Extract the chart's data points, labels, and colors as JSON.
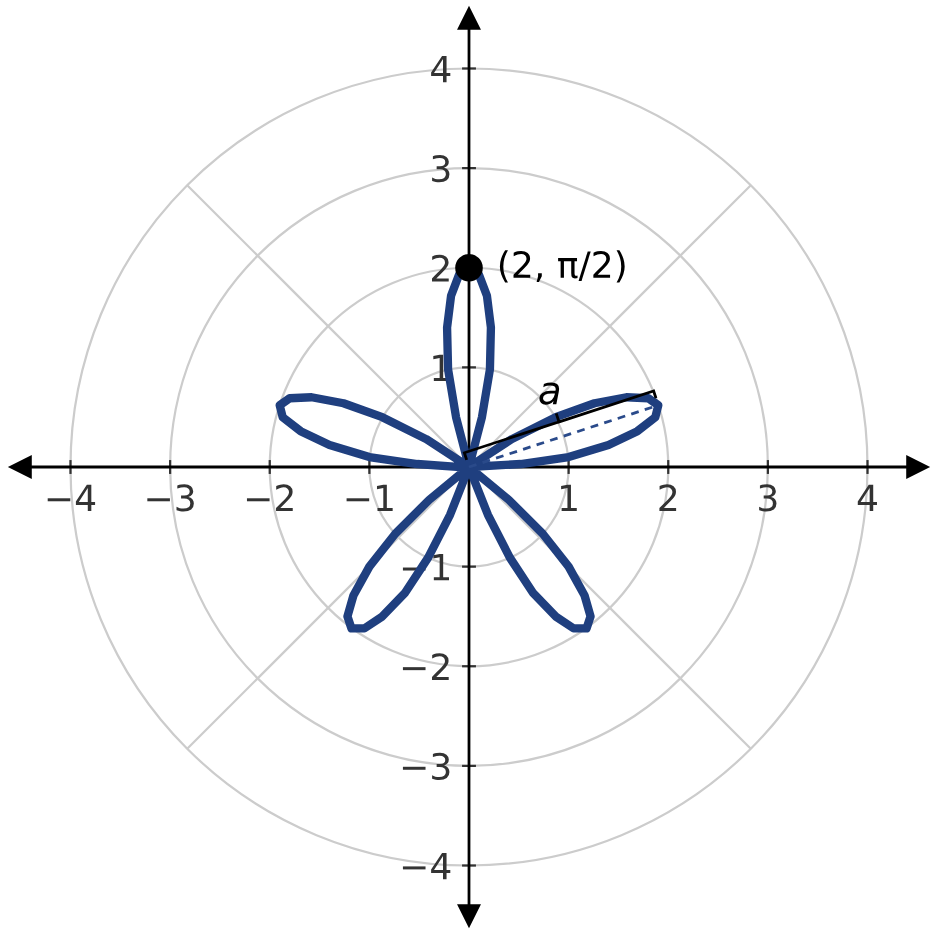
{
  "chart_data": {
    "type": "line",
    "xlim": [
      -4.5,
      4.5
    ],
    "ylim": [
      -4.5,
      4.5
    ],
    "xticks": [
      {
        "value": -4,
        "label": "−4"
      },
      {
        "value": -3,
        "label": "−3"
      },
      {
        "value": -2,
        "label": "−2"
      },
      {
        "value": -1,
        "label": "−1"
      },
      1,
      2,
      3,
      4
    ],
    "yticks": [
      {
        "value": -4,
        "label": "−4"
      },
      {
        "value": -3,
        "label": "−3"
      },
      {
        "value": -2,
        "label": "−2"
      },
      {
        "value": -1,
        "label": "−1"
      },
      1,
      2,
      3,
      4
    ],
    "series": [
      {
        "color": "#1f3f7f",
        "line_style": "solid",
        "x": [
          0,
          0.52,
          1.0,
          1.4,
          1.69,
          1.87,
          1.9,
          1.8,
          1.58,
          1.26,
          0.87,
          0.43,
          0,
          -0.4,
          -0.74,
          -1.0,
          -1.16,
          -1.22,
          -1.18,
          -1.05,
          -0.87,
          -0.64,
          -0.41,
          -0.19,
          0,
          0.13,
          0.21,
          0.22,
          0.18,
          0.1,
          0,
          -0.1,
          -0.18,
          -0.22,
          -0.21,
          -0.13,
          0,
          0.19,
          0.41,
          0.64,
          0.87,
          1.05,
          1.18,
          1.22,
          1.16,
          1.0,
          0.74,
          0.4,
          0,
          -0.43,
          -0.87,
          -1.26,
          -1.58,
          -1.8,
          -1.9,
          -1.87,
          -1.69,
          -1.4,
          -1.0,
          -0.52,
          -0.09
        ],
        "values": [
          0,
          0.03,
          0.1,
          0.22,
          0.36,
          0.5,
          0.62,
          0.69,
          0.7,
          0.64,
          0.5,
          0.28,
          0,
          -0.33,
          -0.67,
          -1.0,
          -1.29,
          -1.5,
          -1.62,
          -1.62,
          -1.5,
          -1.26,
          -0.91,
          -0.48,
          0,
          0.5,
          0.98,
          1.4,
          1.72,
          1.93,
          2.0,
          1.93,
          1.72,
          1.4,
          0.98,
          0.5,
          0,
          -0.48,
          -0.91,
          -1.26,
          -1.5,
          -1.62,
          -1.62,
          -1.5,
          -1.29,
          -1.0,
          -0.67,
          -0.33,
          0,
          0.28,
          0.5,
          0.64,
          0.7,
          0.69,
          0.62,
          0.5,
          0.36,
          0.22,
          0.1,
          0.03,
          0.0
        ]
      },
      {
        "type": "scatter",
        "color": "#000000",
        "marker": "circle",
        "x": [
          0
        ],
        "values": [
          2
        ]
      }
    ],
    "annotations": [
      {
        "text": "(2, π/2)",
        "x": 0,
        "y": 2
      },
      {
        "text": "a",
        "x": 0.95,
        "y": 0.31
      }
    ]
  }
}
